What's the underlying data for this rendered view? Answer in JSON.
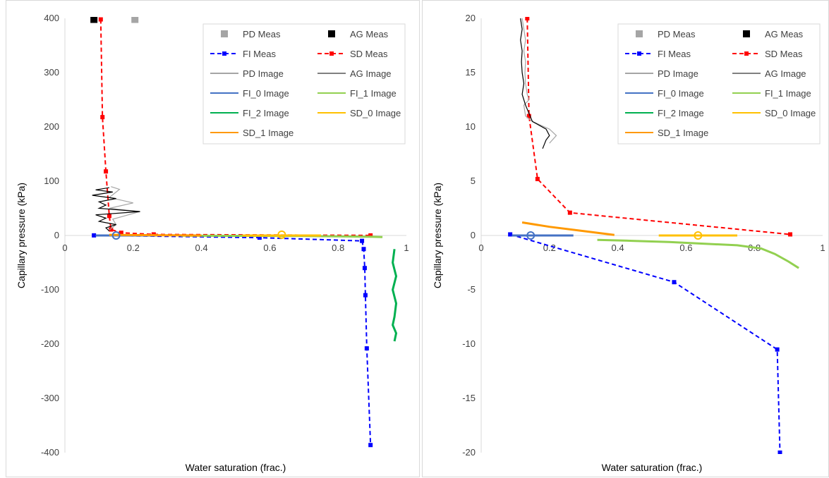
{
  "chart_data": [
    {
      "type": "line",
      "xlabel": "Water saturation (frac.)",
      "ylabel": "Capillary pressure (kPa)",
      "xlim": [
        0,
        1
      ],
      "ylim": [
        -400,
        400
      ],
      "x_ticks": [
        "0",
        "0.2",
        "0.4",
        "0.6",
        "0.8",
        "1"
      ],
      "y_ticks": [
        "400",
        "300",
        "200",
        "100",
        "0",
        "-100",
        "-200",
        "-300",
        "-400"
      ],
      "legend_position": "top-right",
      "grid": false,
      "series": [
        {
          "name": "PD Meas",
          "style": "marker-square",
          "color": "#a5a5a5",
          "x": [
            0.205
          ],
          "y": [
            398
          ]
        },
        {
          "name": "AG Meas",
          "style": "marker-square",
          "color": "#000000",
          "x": [
            0.085
          ],
          "y": [
            398
          ]
        },
        {
          "name": "FI Meas",
          "style": "dashed-square",
          "color": "#0000ff",
          "x": [
            0.085,
            0.57,
            0.87,
            0.875,
            0.878,
            0.88,
            0.884,
            0.895
          ],
          "y": [
            0.2,
            -4,
            -10,
            -25,
            -60,
            -110,
            -208,
            -386
          ]
        },
        {
          "name": "SD Meas",
          "style": "dashed-square",
          "color": "#ff0000",
          "x": [
            0.105,
            0.11,
            0.12,
            0.13,
            0.135,
            0.165,
            0.26,
            0.895
          ],
          "y": [
            398,
            218,
            118,
            36,
            11,
            5,
            2,
            0.1
          ]
        },
        {
          "name": "PD Image",
          "style": "line",
          "color": "#a5a5a5",
          "x": [
            0.135,
            0.16,
            0.13,
            0.2,
            0.13,
            0.22,
            0.14,
            0.15,
            0.13
          ],
          "y": [
            90,
            85,
            70,
            60,
            50,
            44,
            30,
            20,
            10
          ]
        },
        {
          "name": "AG Image",
          "style": "line",
          "color": "#000000",
          "x": [
            0.13,
            0.09,
            0.14,
            0.08,
            0.15,
            0.1,
            0.12,
            0.1,
            0.22,
            0.09,
            0.12,
            0.1,
            0.15,
            0.12,
            0.13
          ],
          "y": [
            88,
            84,
            80,
            74,
            68,
            62,
            56,
            50,
            44,
            38,
            32,
            26,
            20,
            14,
            8
          ]
        },
        {
          "name": "FI_0 Image",
          "style": "line",
          "color": "#4472c4",
          "x": [
            0.09,
            0.27
          ],
          "y": [
            0,
            0
          ]
        },
        {
          "name": "FI_1 Image",
          "style": "line",
          "color": "#92d050",
          "x": [
            0.34,
            0.5,
            0.7,
            0.8,
            0.9,
            0.93
          ],
          "y": [
            -0.4,
            -0.6,
            -1.0,
            -1.5,
            -2.5,
            -3.0
          ]
        },
        {
          "name": "FI_2 Image",
          "style": "line",
          "color": "#00b050",
          "x": [
            0.965,
            0.96,
            0.97,
            0.96,
            0.97,
            0.965,
            0.96,
            0.97,
            0.965
          ],
          "y": [
            -25,
            -50,
            -75,
            -100,
            -125,
            -150,
            -165,
            -180,
            -195
          ]
        },
        {
          "name": "SD_0 Image",
          "style": "line",
          "color": "#ffc000",
          "x": [
            0.52,
            0.75
          ],
          "y": [
            0,
            0
          ]
        },
        {
          "name": "SD_1 Image",
          "style": "line",
          "color": "#ff9900",
          "x": [
            0.13,
            0.2,
            0.3,
            0.4
          ],
          "y": [
            1.2,
            0.8,
            0.4,
            0.0
          ]
        }
      ],
      "open_circles": [
        {
          "x": 0.15,
          "y": 0,
          "color": "#4472c4"
        },
        {
          "x": 0.635,
          "y": 1.5,
          "color": "#ffc000"
        }
      ]
    },
    {
      "type": "line",
      "xlabel": "Water saturation (frac.)",
      "ylabel": "Capillary pressure (kPa)",
      "xlim": [
        0,
        1
      ],
      "ylim": [
        -20,
        20
      ],
      "x_ticks": [
        "0",
        "0.2",
        "0.4",
        "0.6",
        "0.8",
        "1"
      ],
      "y_ticks": [
        "20",
        "15",
        "10",
        "5",
        "0",
        "-5",
        "-10",
        "-15",
        "-20"
      ],
      "legend_position": "top-right",
      "grid": false,
      "series": [
        {
          "name": "PD Meas",
          "style": "marker-square",
          "color": "#a5a5a5",
          "x": [],
          "y": []
        },
        {
          "name": "AG Meas",
          "style": "marker-square",
          "color": "#000000",
          "x": [],
          "y": []
        },
        {
          "name": "FI Meas",
          "style": "dashed-square",
          "color": "#0000ff",
          "x": [
            0.085,
            0.565,
            0.867,
            0.875
          ],
          "y": [
            0.1,
            -4.3,
            -10.5,
            -20
          ]
        },
        {
          "name": "SD Meas",
          "style": "dashed-square",
          "color": "#ff0000",
          "x": [
            0.135,
            0.14,
            0.165,
            0.26,
            0.905
          ],
          "y": [
            20,
            11,
            5.2,
            2.1,
            0.1
          ]
        },
        {
          "name": "PD Image",
          "style": "line",
          "color": "#a5a5a5",
          "x": [
            0.12,
            0.125,
            0.13,
            0.125,
            0.13,
            0.128,
            0.13,
            0.135,
            0.14,
            0.125,
            0.13,
            0.15,
            0.2,
            0.22,
            0.2
          ],
          "y": [
            20,
            19,
            18,
            17,
            16,
            15,
            14,
            13,
            12.5,
            12,
            11,
            10.5,
            9.8,
            9.2,
            8.5
          ]
        },
        {
          "name": "AG Image",
          "style": "line",
          "color": "#000000",
          "x": [
            0.115,
            0.12,
            0.115,
            0.12,
            0.118,
            0.12,
            0.125,
            0.12,
            0.13,
            0.15,
            0.19,
            0.2,
            0.19,
            0.18
          ],
          "y": [
            20,
            19,
            18,
            17,
            16,
            15,
            14,
            13,
            12,
            10.5,
            9.8,
            9.2,
            8.8,
            8.0
          ]
        },
        {
          "name": "FI_0 Image",
          "style": "line",
          "color": "#4472c4",
          "x": [
            0.09,
            0.27
          ],
          "y": [
            0,
            0
          ]
        },
        {
          "name": "FI_1 Image",
          "style": "line",
          "color": "#92d050",
          "x": [
            0.34,
            0.45,
            0.55,
            0.65,
            0.75,
            0.82,
            0.86,
            0.9,
            0.93
          ],
          "y": [
            -0.4,
            -0.5,
            -0.6,
            -0.75,
            -0.9,
            -1.2,
            -1.7,
            -2.4,
            -3.0
          ]
        },
        {
          "name": "FI_2 Image",
          "style": "line",
          "color": "#00b050",
          "x": [],
          "y": []
        },
        {
          "name": "SD_0 Image",
          "style": "line",
          "color": "#ffc000",
          "x": [
            0.52,
            0.75
          ],
          "y": [
            0,
            0
          ]
        },
        {
          "name": "SD_1 Image",
          "style": "line",
          "color": "#ff9900",
          "x": [
            0.12,
            0.2,
            0.3,
            0.39
          ],
          "y": [
            1.2,
            0.8,
            0.4,
            0.05
          ]
        }
      ],
      "open_circles": [
        {
          "x": 0.145,
          "y": 0,
          "color": "#4472c4"
        },
        {
          "x": 0.635,
          "y": 0,
          "color": "#ffc000"
        }
      ]
    }
  ]
}
